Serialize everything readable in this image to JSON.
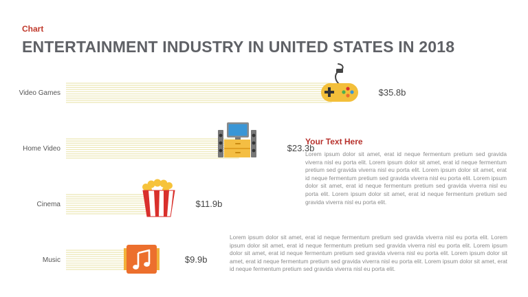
{
  "header": {
    "eyebrow": "Chart",
    "title": "ENTERTAINMENT INDUSTRY IN UNITED STATES IN 2018"
  },
  "callout": {
    "title": "Your  Text Here",
    "paragraph1": "Lorem ipsum dolor sit amet, erat id neque fermentum pretium sed gravida viverra nisl eu porta elit. Lorem ipsum dolor sit amet, erat id neque fermentum pretium sed gravida viverra nisl eu porta elit. Lorem ipsum dolor sit amet, erat id neque fermentum pretium sed gravida viverra nisl eu porta elit. Lorem ipsum dolor sit amet, erat id neque fermentum pretium sed gravida viverra nisl eu porta elit. Lorem ipsum dolor sit amet, erat id neque fermentum pretium sed gravida viverra nisl eu porta elit.",
    "paragraph2": "Lorem ipsum dolor sit amet, erat id neque fermentum pretium sed gravida viverra nisl eu porta elit. Lorem ipsum dolor sit amet, erat id neque fermentum pretium sed gravida viverra nisl eu porta elit. Lorem ipsum dolor sit amet, erat id neque fermentum pretium sed gravida viverra nisl eu porta elit. Lorem ipsum dolor sit amet, erat id neque fermentum pretium sed gravida viverra nisl eu porta elit. Lorem ipsum dolor sit amet, erat id neque fermentum pretium sed gravida viverra nisl eu porta elit."
  },
  "chart_data": {
    "type": "bar",
    "orientation": "horizontal",
    "categories": [
      "Video Games",
      "Home Video",
      "Cinema",
      "Music"
    ],
    "values": [
      35.8,
      23.3,
      11.9,
      9.9
    ],
    "value_labels": [
      "$35.8b",
      "$23.3b",
      "$11.9b",
      "$9.9b"
    ],
    "icons": [
      "gamepad-icon",
      "home-theater-icon",
      "popcorn-icon",
      "music-note-icon"
    ],
    "title": "ENTERTAINMENT INDUSTRY IN UNITED STATES IN 2018",
    "xlabel": "",
    "ylabel": "",
    "grid": false,
    "bar_color": "#ece7b4"
  },
  "colors": {
    "accent": "#c0392b",
    "bar_stripe": "#ece7b4",
    "gamepad": "#f3bf3a",
    "tv_frame": "#8a8a8a",
    "tv_screen": "#3a96d6",
    "cabinet": "#f4be43",
    "popcorn_red": "#d9302c",
    "music": "#ec6f2d"
  }
}
